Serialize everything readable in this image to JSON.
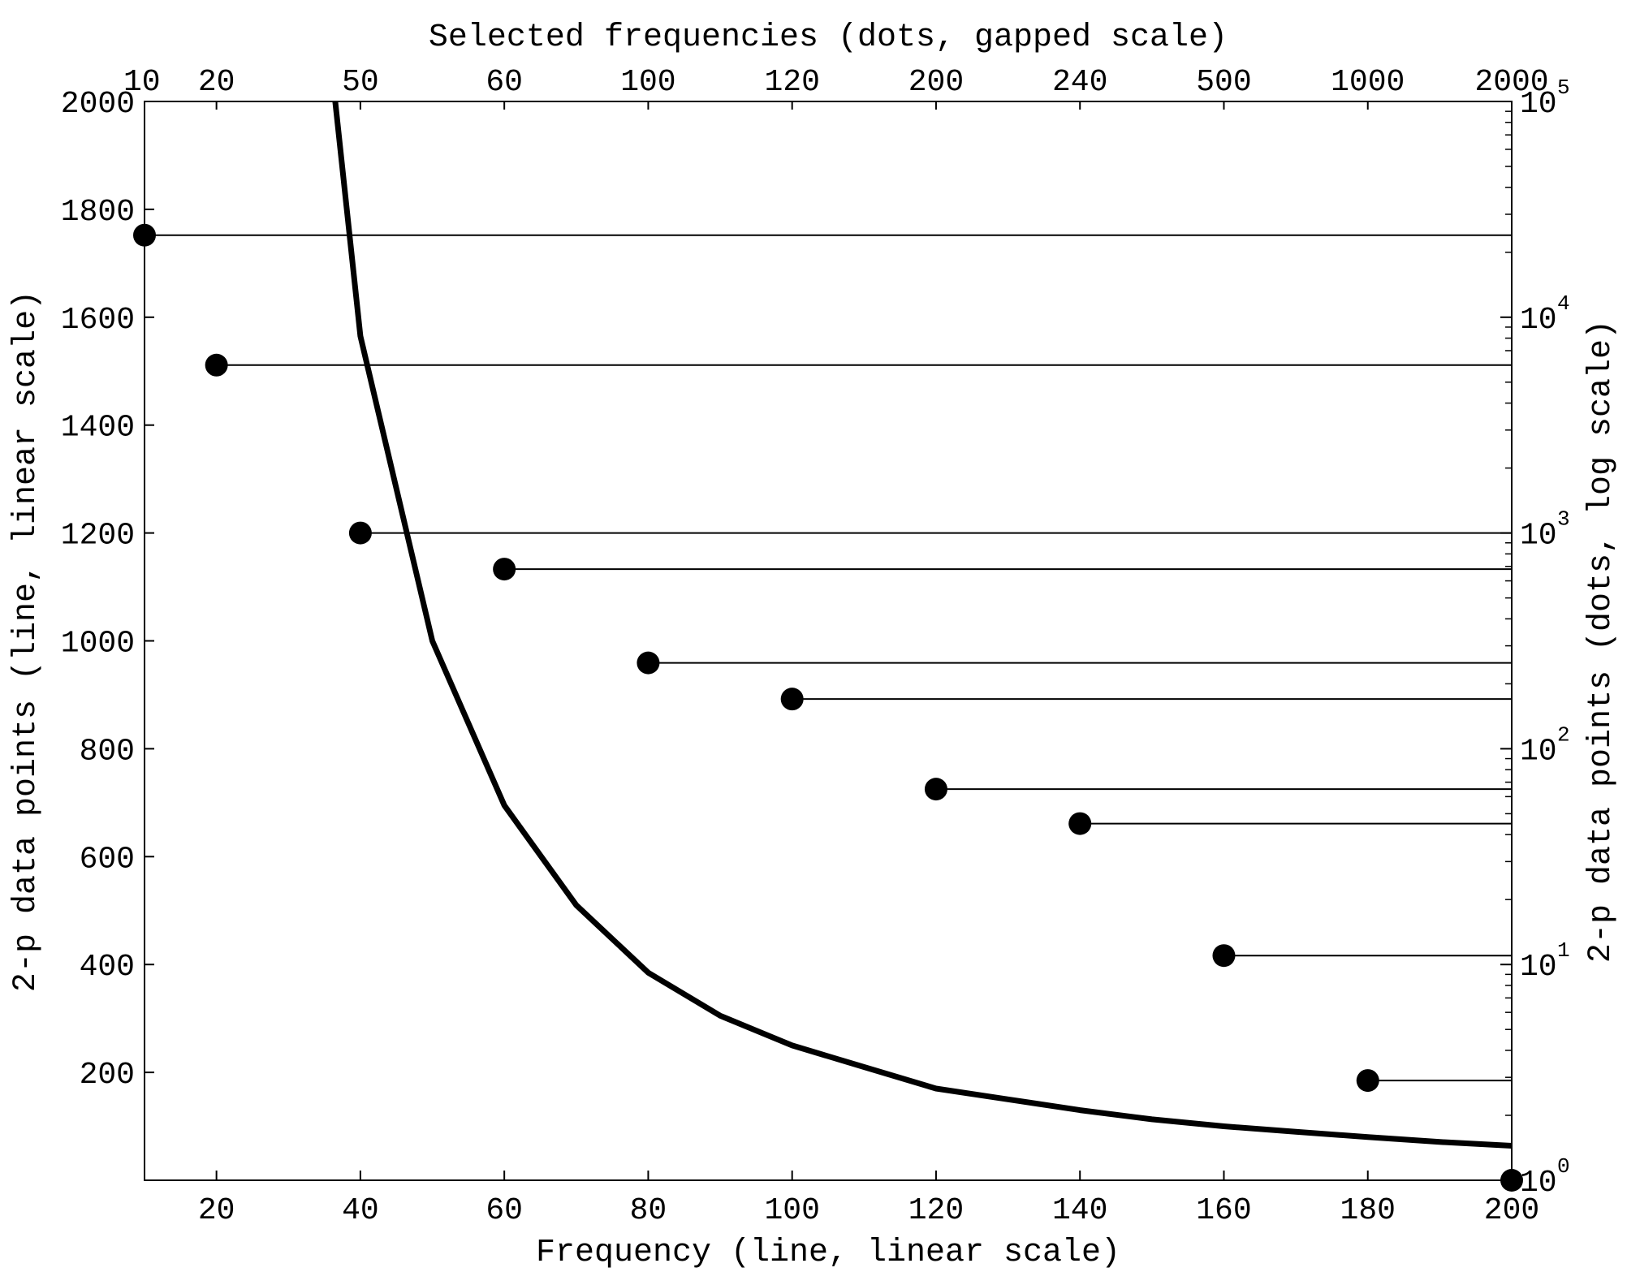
{
  "chart_data": {
    "type": "line",
    "title": "",
    "colors": {
      "line": "#000000",
      "dots": "#000000",
      "stems": "#000000",
      "background": "#ffffff"
    },
    "grid": false,
    "legend": "none",
    "axes": {
      "bottom": {
        "label": "Frequency (line, linear scale)",
        "scale": "linear",
        "range": [
          10,
          200
        ],
        "ticks": [
          20,
          40,
          60,
          80,
          100,
          120,
          140,
          160,
          180,
          200
        ],
        "tick_labels": [
          "20",
          "40",
          "60",
          "80",
          "100",
          "120",
          "140",
          "160",
          "180",
          "200"
        ]
      },
      "left": {
        "label": "2-p data points (line, linear scale)",
        "scale": "linear",
        "range": [
          0,
          2000
        ],
        "ticks": [
          200,
          400,
          600,
          800,
          1000,
          1200,
          1400,
          1600,
          1800,
          2000
        ],
        "tick_labels": [
          "200",
          "400",
          "600",
          "800",
          "1000",
          "1200",
          "1400",
          "1600",
          "1800",
          "2000"
        ]
      },
      "top": {
        "label": "Selected frequencies (dots, gapped scale)",
        "scale": "categorical",
        "tick_labels": [
          "10",
          "20",
          "50",
          "60",
          "100",
          "120",
          "200",
          "240",
          "500",
          "1000",
          "2000"
        ]
      },
      "right": {
        "label": "2-p data points (dots, log scale)",
        "scale": "log",
        "range": [
          1,
          100000
        ],
        "ticks": [
          1,
          10,
          100,
          1000,
          10000,
          100000
        ],
        "tick_labels": [
          {
            "base": "10",
            "exp": "0"
          },
          {
            "base": "10",
            "exp": "1"
          },
          {
            "base": "10",
            "exp": "2"
          },
          {
            "base": "10",
            "exp": "3"
          },
          {
            "base": "10",
            "exp": "4"
          },
          {
            "base": "10",
            "exp": "5"
          }
        ]
      }
    },
    "series": [
      {
        "kind": "line",
        "x": [
          36.5,
          40,
          50,
          60,
          70,
          80,
          90,
          100,
          110,
          120,
          130,
          140,
          150,
          160,
          170,
          180,
          190,
          200
        ],
        "y": [
          2000,
          1565,
          1000,
          695,
          510,
          385,
          305,
          250,
          210,
          170,
          150,
          130,
          113,
          100,
          90,
          80,
          71,
          64
        ]
      },
      {
        "kind": "dots",
        "x_positions": [
          10,
          20,
          40,
          60,
          80,
          100,
          120,
          140,
          160,
          180,
          200
        ],
        "top_category": [
          "10",
          "20",
          "50",
          "60",
          "100",
          "120",
          "200",
          "240",
          "500",
          "1000",
          "2000"
        ],
        "y_log": [
          24000,
          6000,
          1000,
          680,
          250,
          170,
          65,
          45,
          11,
          2.9,
          1
        ]
      }
    ]
  }
}
